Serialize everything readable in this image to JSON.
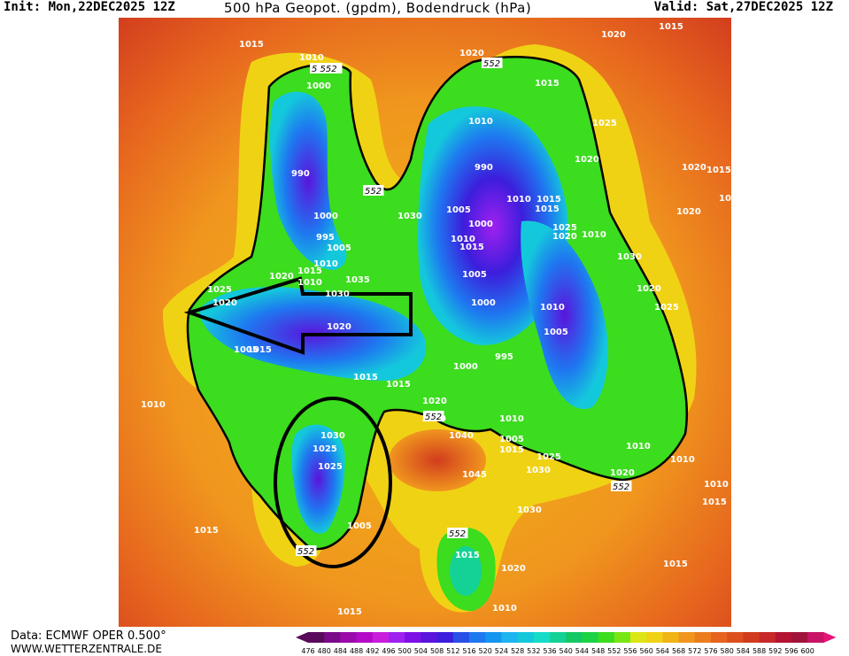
{
  "header": {
    "init": "Init: Mon,22DEC2025 12Z",
    "title": "500 hPa Geopot. (gpdm), Bodendruck (hPa)",
    "valid": "Valid: Sat,27DEC2025 12Z"
  },
  "footer": {
    "data_source": "Data: ECMWF OPER 0.500°",
    "website": "WWW.WETTERZENTRALE.DE"
  },
  "legend": {
    "values": [
      "476",
      "480",
      "484",
      "488",
      "492",
      "496",
      "500",
      "504",
      "508",
      "512",
      "516",
      "520",
      "524",
      "528",
      "532",
      "536",
      "540",
      "544",
      "548",
      "552",
      "556",
      "560",
      "564",
      "568",
      "572",
      "576",
      "580",
      "584",
      "588",
      "592",
      "596",
      "600"
    ],
    "colors": [
      "#5a0a5a",
      "#7a0a8a",
      "#9a0aaa",
      "#b40ac8",
      "#c81edc",
      "#a020f0",
      "#7d10e6",
      "#5a14dc",
      "#3c1edc",
      "#2850e6",
      "#1e78f0",
      "#1496f0",
      "#1eb4f0",
      "#14c8dc",
      "#14dcc8",
      "#14d296",
      "#14c864",
      "#1ed246",
      "#3cdc1e",
      "#78e614",
      "#dce614",
      "#f0d214",
      "#f0b414",
      "#f0961e",
      "#eb7d1e",
      "#e6641e",
      "#dc501e",
      "#d23c1e",
      "#c82828",
      "#b41432",
      "#a0143c",
      "#c81464"
    ],
    "arrow_left_color": "#5a0a5a",
    "arrow_right_color": "#e61478"
  },
  "map": {
    "isobar_labels": [
      {
        "text": "1015"
      },
      {
        "text": "1010"
      },
      {
        "text": "1020"
      },
      {
        "text": "1020"
      },
      {
        "text": "1015"
      },
      {
        "text": "1000"
      },
      {
        "text": "1015"
      },
      {
        "text": "1010"
      },
      {
        "text": "1020"
      },
      {
        "text": "1025"
      },
      {
        "text": "990"
      },
      {
        "text": "990"
      },
      {
        "text": "1010"
      },
      {
        "text": "1015"
      },
      {
        "text": "1020"
      },
      {
        "text": "1020"
      },
      {
        "text": "1015"
      },
      {
        "text": "1015"
      },
      {
        "text": "1000"
      },
      {
        "text": "1030"
      },
      {
        "text": "1005"
      },
      {
        "text": "1015"
      },
      {
        "text": "1025"
      },
      {
        "text": "1020"
      },
      {
        "text": "995"
      },
      {
        "text": "1005"
      },
      {
        "text": "1000"
      },
      {
        "text": "1010"
      },
      {
        "text": "1010"
      },
      {
        "text": "1015"
      },
      {
        "text": "1030"
      },
      {
        "text": "1010"
      },
      {
        "text": "1015"
      },
      {
        "text": "1035"
      },
      {
        "text": "1010"
      },
      {
        "text": "1005"
      },
      {
        "text": "1020"
      },
      {
        "text": "1025"
      },
      {
        "text": "1020"
      },
      {
        "text": "1030"
      },
      {
        "text": "1000"
      },
      {
        "text": "1010"
      },
      {
        "text": "1020"
      },
      {
        "text": "1025"
      },
      {
        "text": "1020"
      },
      {
        "text": "1005"
      },
      {
        "text": "1015"
      },
      {
        "text": "1020"
      },
      {
        "text": "1005"
      },
      {
        "text": "995"
      },
      {
        "text": "1000"
      },
      {
        "text": "1015"
      },
      {
        "text": "1015"
      },
      {
        "text": "1010"
      },
      {
        "text": "1020"
      },
      {
        "text": "1030"
      },
      {
        "text": "1025"
      },
      {
        "text": "1010"
      },
      {
        "text": "1040"
      },
      {
        "text": "1005"
      },
      {
        "text": "1015"
      },
      {
        "text": "1025"
      },
      {
        "text": "1030"
      },
      {
        "text": "1010"
      },
      {
        "text": "1020"
      },
      {
        "text": "1045"
      },
      {
        "text": "1025"
      },
      {
        "text": "1010"
      },
      {
        "text": "1005"
      },
      {
        "text": "1030"
      },
      {
        "text": "1015"
      },
      {
        "text": "1015"
      },
      {
        "text": "1015"
      },
      {
        "text": "1020"
      },
      {
        "text": "1015"
      },
      {
        "text": "1010"
      },
      {
        "text": "1010"
      },
      {
        "text": "1015"
      }
    ],
    "contour_552_labels": [
      {
        "text": "5 552"
      },
      {
        "text": "552"
      },
      {
        "text": "552"
      },
      {
        "text": "552"
      },
      {
        "text": "552"
      },
      {
        "text": "552"
      },
      {
        "text": "552"
      }
    ]
  }
}
